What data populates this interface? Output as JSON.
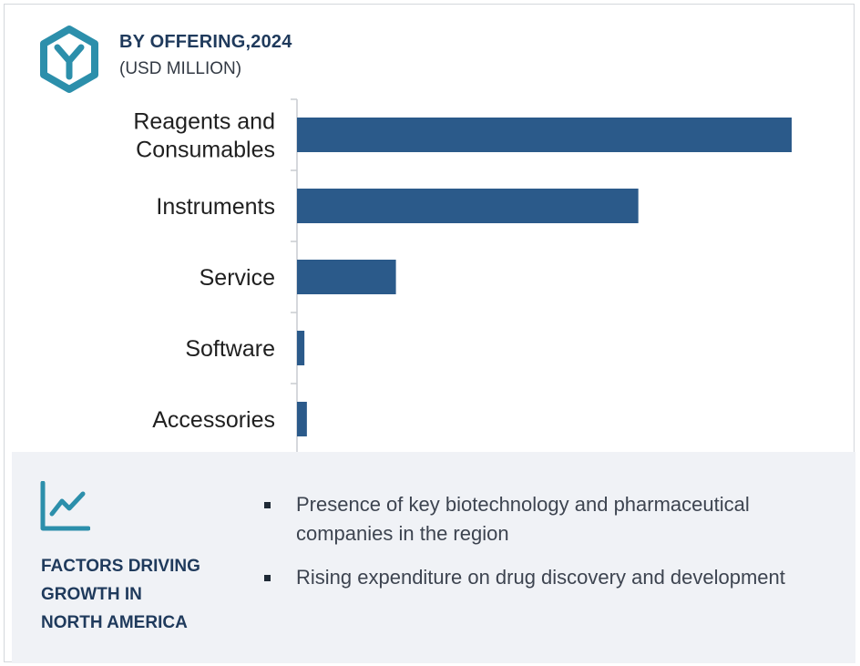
{
  "header": {
    "title": "BY OFFERING,2024",
    "subtitle": "(USD MILLION)",
    "icon": "hexagon-y-icon",
    "accent_color": "#2c8fab"
  },
  "chart_data": {
    "type": "bar",
    "orientation": "horizontal",
    "title": "BY OFFERING,2024",
    "subtitle": "(USD MILLION)",
    "xlabel": "",
    "ylabel": "",
    "categories": [
      [
        "Reagents and",
        "Consumables"
      ],
      [
        "Instruments"
      ],
      [
        "Service"
      ],
      [
        "Software"
      ],
      [
        "Accessories"
      ]
    ],
    "values": [
      100,
      69,
      20,
      1.5,
      2
    ],
    "value_axis_note": "relative magnitude; no numeric axis printed",
    "xlim": [
      0,
      100
    ],
    "bar_color": "#2b5a8a",
    "grid": false,
    "legend": "none"
  },
  "factors": {
    "icon": "trend-line-icon",
    "title_lines": [
      "FACTORS DRIVING",
      "GROWTH IN",
      "NORTH AMERICA"
    ],
    "bullets": [
      "Presence of key biotechnology and pharmaceutical companies in the region",
      "Rising expenditure on drug discovery and development"
    ]
  }
}
